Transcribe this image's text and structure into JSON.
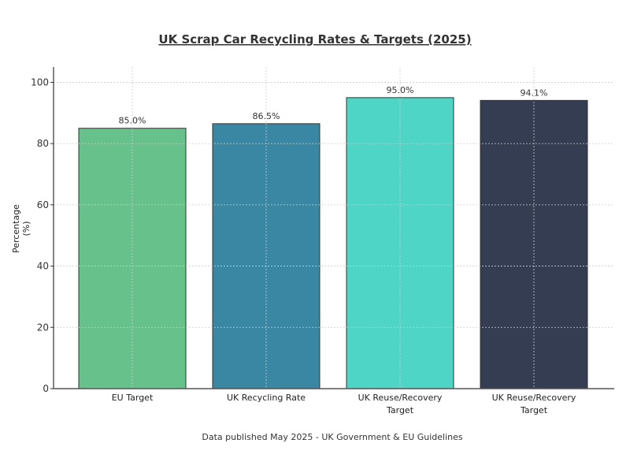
{
  "chart_data": {
    "type": "bar",
    "title": "UK Scrap Car Recycling Rates & Targets (2025)",
    "ylabel": "Percentage (%)",
    "xlabel": "",
    "footnote": "Data published May 2025 - UK Government & EU Guidelines",
    "categories": [
      "EU Target",
      "UK Recycling Rate",
      "UK Reuse/Recovery Target",
      "UK Reuse/Recovery Target"
    ],
    "values": [
      85.0,
      86.5,
      95.0,
      94.1
    ],
    "data_labels": [
      "85.0%",
      "86.5%",
      "95.0%",
      "94.1%"
    ],
    "colors": [
      "#66c18a",
      "#3a87a3",
      "#4fd5c6",
      "#343d52"
    ],
    "ylim": [
      0,
      105
    ],
    "yticks": [
      0,
      20,
      40,
      60,
      80,
      100
    ],
    "grid": true,
    "legend": "none"
  }
}
